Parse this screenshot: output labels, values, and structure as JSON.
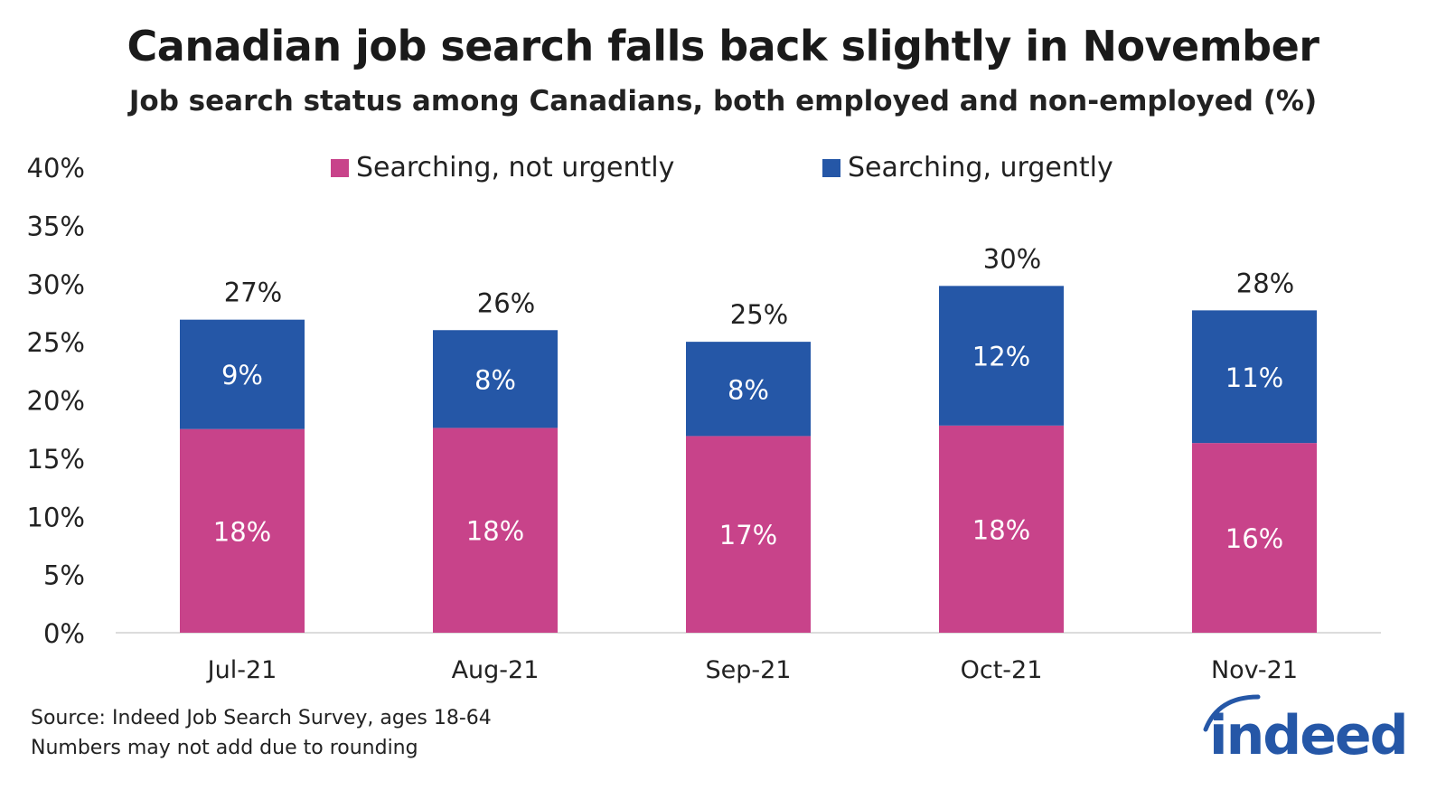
{
  "title": "Canadian job search falls back slightly in November",
  "subtitle": "Job search status among Canadians, both employed and non-employed (%)",
  "colors": {
    "not_urgent": "#c8438a",
    "urgent": "#2557a7",
    "logo": "#2557a7"
  },
  "legend": {
    "not_urgent": "Searching, not urgently",
    "urgent": "Searching, urgently"
  },
  "source": {
    "line1": "Source: Indeed Job Search Survey, ages 18-64",
    "line2": "Numbers may not add due to rounding"
  },
  "logo": {
    "text": "indeed",
    "icon": "indeed-logo-arc-icon"
  },
  "chart_data": {
    "type": "bar",
    "stacked": true,
    "categories": [
      "Jul-21",
      "Aug-21",
      "Sep-21",
      "Oct-21",
      "Nov-21"
    ],
    "series": [
      {
        "name": "Searching, not urgently",
        "values": [
          17.5,
          17.6,
          16.9,
          17.8,
          16.3
        ],
        "labels": [
          "18%",
          "18%",
          "17%",
          "18%",
          "16%"
        ]
      },
      {
        "name": "Searching, urgently",
        "values": [
          9.4,
          8.4,
          8.1,
          12.0,
          11.4
        ],
        "labels": [
          "9%",
          "8%",
          "8%",
          "12%",
          "11%"
        ]
      }
    ],
    "totals": [
      "27%",
      "26%",
      "25%",
      "30%",
      "28%"
    ],
    "ylim": [
      0,
      40
    ],
    "yticks": [
      "0%",
      "5%",
      "10%",
      "15%",
      "20%",
      "25%",
      "30%",
      "35%",
      "40%"
    ],
    "grid": false,
    "legend_position": "top"
  }
}
